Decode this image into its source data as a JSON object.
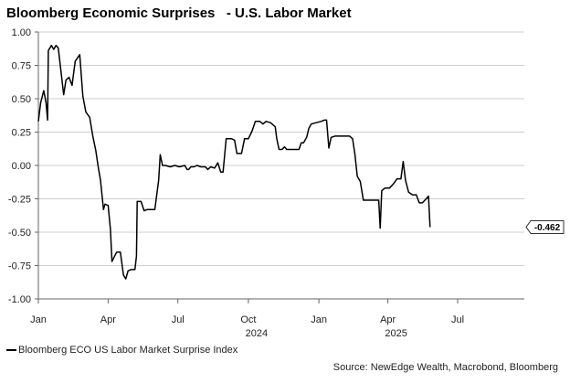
{
  "title": "Bloomberg Economic Surprises   - U.S. Labor Market",
  "source": "Source: NewEdge Wealth, Macrobond, Bloomberg",
  "chart_data": {
    "type": "line",
    "title": "Bloomberg Economic Surprises   - U.S. Labor Market",
    "ylim": [
      -1.0,
      1.0
    ],
    "yticks": [
      1.0,
      0.75,
      0.5,
      0.25,
      0.0,
      -0.25,
      -0.5,
      -0.75,
      -1.0
    ],
    "ytick_labels": [
      "1.00",
      "0.75",
      "0.50",
      "0.25",
      "0.00",
      "-0.25",
      "-0.50",
      "-0.75",
      "-1.00"
    ],
    "xlim": [
      "2024-01-01",
      "2025-09-26"
    ],
    "xticks": [
      {
        "date": "2024-01-01",
        "label": "Jan"
      },
      {
        "date": "2024-04-01",
        "label": "Apr"
      },
      {
        "date": "2024-07-01",
        "label": "Jul"
      },
      {
        "date": "2024-10-01",
        "label": "Oct"
      },
      {
        "date": "2025-01-01",
        "label": "Jan"
      },
      {
        "date": "2025-04-01",
        "label": "Apr"
      },
      {
        "date": "2025-07-01",
        "label": "Jul"
      }
    ],
    "year_labels": [
      {
        "date": "2024-10-01",
        "label": "2024"
      },
      {
        "date": "2025-04-01",
        "label": "2025"
      }
    ],
    "grid": true,
    "legend_position": "bottom-left",
    "last_value_label": "-0.462",
    "series": [
      {
        "name": "Bloomberg ECO US Labor Market Surprise Index",
        "color": "#000000",
        "points": [
          [
            "2024-01-01",
            0.33
          ],
          [
            "2024-01-04",
            0.47
          ],
          [
            "2024-01-08",
            0.56
          ],
          [
            "2024-01-11",
            0.47
          ],
          [
            "2024-01-13",
            0.34
          ],
          [
            "2024-01-14",
            0.86
          ],
          [
            "2024-01-18",
            0.9
          ],
          [
            "2024-01-21",
            0.87
          ],
          [
            "2024-01-24",
            0.9
          ],
          [
            "2024-01-27",
            0.88
          ],
          [
            "2024-02-03",
            0.53
          ],
          [
            "2024-02-06",
            0.64
          ],
          [
            "2024-02-10",
            0.66
          ],
          [
            "2024-02-14",
            0.6
          ],
          [
            "2024-02-18",
            0.78
          ],
          [
            "2024-02-24",
            0.83
          ],
          [
            "2024-02-28",
            0.52
          ],
          [
            "2024-03-03",
            0.4
          ],
          [
            "2024-03-08",
            0.36
          ],
          [
            "2024-03-12",
            0.22
          ],
          [
            "2024-03-16",
            0.11
          ],
          [
            "2024-03-19",
            -0.01
          ],
          [
            "2024-03-22",
            -0.11
          ],
          [
            "2024-03-26",
            -0.33
          ],
          [
            "2024-03-28",
            -0.29
          ],
          [
            "2024-04-01",
            -0.3
          ],
          [
            "2024-04-04",
            -0.48
          ],
          [
            "2024-04-06",
            -0.72
          ],
          [
            "2024-04-12",
            -0.65
          ],
          [
            "2024-04-17",
            -0.65
          ],
          [
            "2024-04-21",
            -0.82
          ],
          [
            "2024-04-24",
            -0.85
          ],
          [
            "2024-04-27",
            -0.79
          ],
          [
            "2024-05-01",
            -0.78
          ],
          [
            "2024-05-06",
            -0.78
          ],
          [
            "2024-05-08",
            -0.68
          ],
          [
            "2024-05-09",
            -0.27
          ],
          [
            "2024-05-14",
            -0.27
          ],
          [
            "2024-05-18",
            -0.34
          ],
          [
            "2024-05-22",
            -0.33
          ],
          [
            "2024-05-26",
            -0.33
          ],
          [
            "2024-06-01",
            -0.33
          ],
          [
            "2024-06-06",
            -0.11
          ],
          [
            "2024-06-08",
            0.08
          ],
          [
            "2024-06-11",
            0.0
          ],
          [
            "2024-06-15",
            0.0
          ],
          [
            "2024-06-21",
            -0.01
          ],
          [
            "2024-06-27",
            0.0
          ],
          [
            "2024-07-03",
            -0.01
          ],
          [
            "2024-07-10",
            0.0
          ],
          [
            "2024-07-13",
            -0.03
          ],
          [
            "2024-07-15",
            -0.03
          ],
          [
            "2024-07-18",
            -0.01
          ],
          [
            "2024-07-22",
            -0.01
          ],
          [
            "2024-07-26",
            0.0
          ],
          [
            "2024-07-31",
            -0.01
          ],
          [
            "2024-08-06",
            -0.01
          ],
          [
            "2024-08-09",
            -0.03
          ],
          [
            "2024-08-13",
            -0.01
          ],
          [
            "2024-08-18",
            -0.02
          ],
          [
            "2024-08-22",
            0.02
          ],
          [
            "2024-08-26",
            -0.05
          ],
          [
            "2024-08-29",
            -0.05
          ],
          [
            "2024-09-02",
            0.2
          ],
          [
            "2024-09-09",
            0.2
          ],
          [
            "2024-09-13",
            0.19
          ],
          [
            "2024-09-16",
            0.09
          ],
          [
            "2024-09-22",
            0.09
          ],
          [
            "2024-09-26",
            0.2
          ],
          [
            "2024-10-01",
            0.2
          ],
          [
            "2024-10-06",
            0.26
          ],
          [
            "2024-10-10",
            0.33
          ],
          [
            "2024-10-16",
            0.33
          ],
          [
            "2024-10-20",
            0.31
          ],
          [
            "2024-10-24",
            0.33
          ],
          [
            "2024-10-30",
            0.32
          ],
          [
            "2024-11-05",
            0.29
          ],
          [
            "2024-11-07",
            0.2
          ],
          [
            "2024-11-10",
            0.12
          ],
          [
            "2024-11-14",
            0.12
          ],
          [
            "2024-11-17",
            0.14
          ],
          [
            "2024-11-20",
            0.12
          ],
          [
            "2024-11-30",
            0.12
          ],
          [
            "2024-12-06",
            0.12
          ],
          [
            "2024-12-09",
            0.17
          ],
          [
            "2024-12-12",
            0.17
          ],
          [
            "2024-12-16",
            0.21
          ],
          [
            "2024-12-19",
            0.28
          ],
          [
            "2024-12-22",
            0.31
          ],
          [
            "2024-12-28",
            0.32
          ],
          [
            "2025-01-04",
            0.33
          ],
          [
            "2025-01-08",
            0.34
          ],
          [
            "2025-01-11",
            0.34
          ],
          [
            "2025-01-14",
            0.13
          ],
          [
            "2025-01-17",
            0.21
          ],
          [
            "2025-01-22",
            0.22
          ],
          [
            "2025-02-01",
            0.22
          ],
          [
            "2025-02-10",
            0.22
          ],
          [
            "2025-02-14",
            0.2
          ],
          [
            "2025-02-17",
            0.08
          ],
          [
            "2025-02-20",
            -0.08
          ],
          [
            "2025-02-24",
            -0.12
          ],
          [
            "2025-02-28",
            -0.26
          ],
          [
            "2025-03-10",
            -0.26
          ],
          [
            "2025-03-20",
            -0.26
          ],
          [
            "2025-03-22",
            -0.47
          ],
          [
            "2025-03-24",
            -0.19
          ],
          [
            "2025-03-28",
            -0.17
          ],
          [
            "2025-04-03",
            -0.17
          ],
          [
            "2025-04-08",
            -0.14
          ],
          [
            "2025-04-13",
            -0.1
          ],
          [
            "2025-04-18",
            -0.1
          ],
          [
            "2025-04-21",
            0.03
          ],
          [
            "2025-04-24",
            -0.11
          ],
          [
            "2025-04-28",
            -0.2
          ],
          [
            "2025-05-03",
            -0.22
          ],
          [
            "2025-05-08",
            -0.22
          ],
          [
            "2025-05-12",
            -0.28
          ],
          [
            "2025-05-16",
            -0.28
          ],
          [
            "2025-05-21",
            -0.25
          ],
          [
            "2025-05-24",
            -0.23
          ],
          [
            "2025-05-26",
            -0.462
          ]
        ]
      }
    ]
  }
}
